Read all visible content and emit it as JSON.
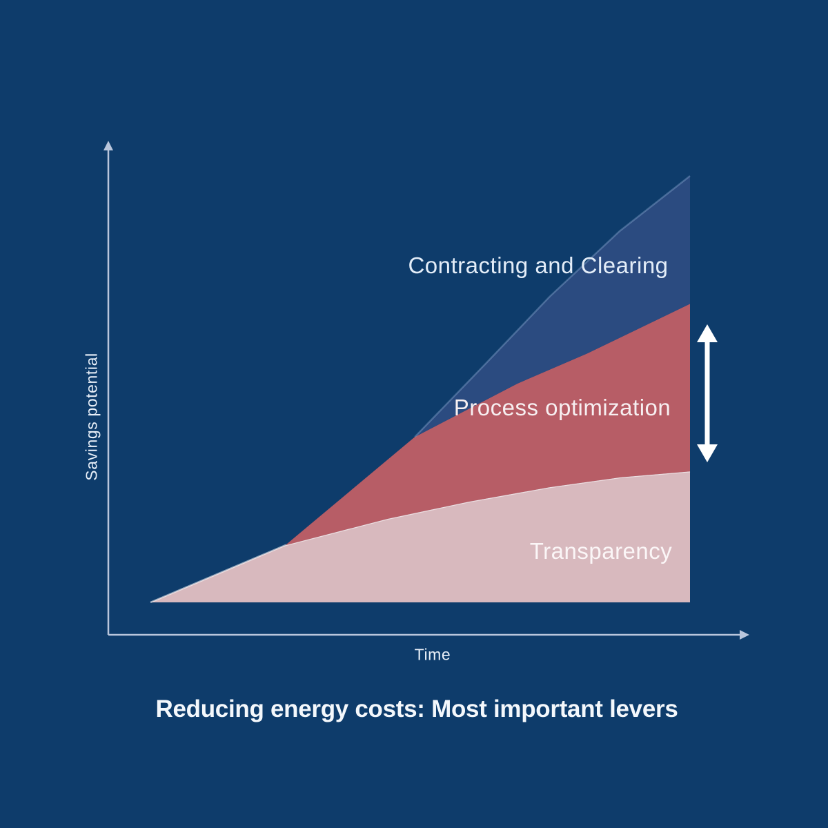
{
  "background": "#0e3c6b",
  "title": {
    "text": "Reducing energy costs: Most important levers"
  },
  "axes": {
    "x_label": "Time",
    "y_label": "Savings potential",
    "color": "#b9c6dc"
  },
  "annotations": {
    "range_arrow": {
      "meaning": "savings range of process optimization band",
      "color": "#ffffff"
    }
  },
  "chart_data": {
    "type": "area",
    "stacked": true,
    "title": "Reducing energy costs: Most important levers",
    "xlabel": "Time",
    "ylabel": "Savings potential",
    "x_range": [
      0,
      100
    ],
    "y_range": [
      0,
      100
    ],
    "grid": false,
    "axis_ticks": "none",
    "legend_position": "labels-inside-areas",
    "series": [
      {
        "name": "Transparency",
        "fill": "#d8b9be",
        "edge": "rgba(255,255,255,0.55)",
        "points": [
          [
            0,
            0
          ],
          [
            25,
            13.4
          ],
          [
            44,
            19.6
          ],
          [
            59,
            23.6
          ],
          [
            74,
            27.0
          ],
          [
            87,
            29.3
          ],
          [
            100,
            30.7
          ]
        ]
      },
      {
        "name": "Process optimization",
        "fill": "#b75d66",
        "edge": null,
        "points": [
          [
            25,
            13.4
          ],
          [
            49,
            38.8
          ],
          [
            68,
            51.3
          ],
          [
            81,
            58.4
          ],
          [
            100,
            70.0
          ]
        ]
      },
      {
        "name": "Contracting and Clearing",
        "fill": "#2b4b80",
        "edge": "rgba(160,190,225,0.35)",
        "points": [
          [
            49,
            38.8
          ],
          [
            62,
            55.8
          ],
          [
            74,
            71.7
          ],
          [
            87,
            87.1
          ],
          [
            100,
            100.0
          ]
        ]
      }
    ]
  }
}
